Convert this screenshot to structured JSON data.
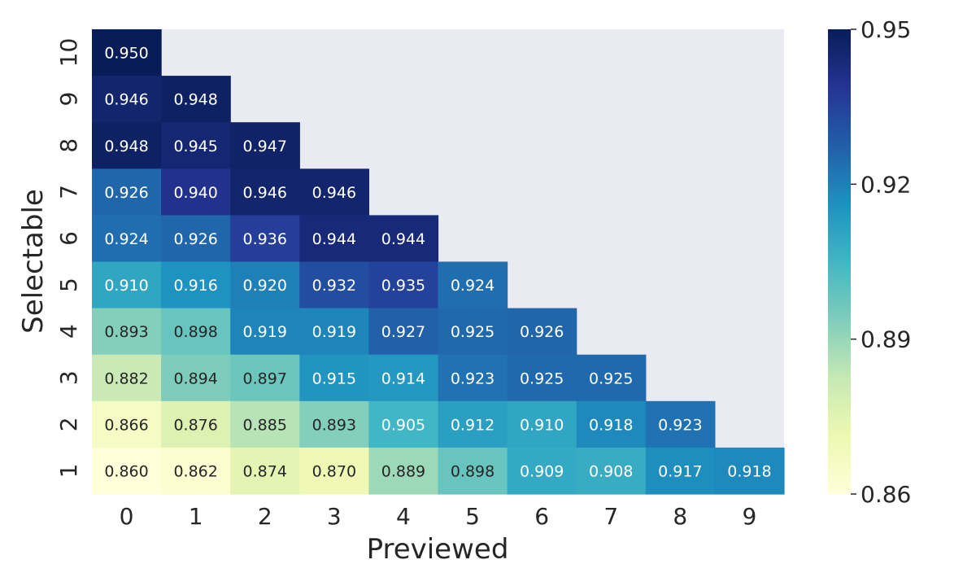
{
  "chart_data": {
    "type": "heatmap",
    "title": "",
    "xlabel": "Previewed",
    "ylabel": "Selectable",
    "x_ticks": [
      "0",
      "1",
      "2",
      "3",
      "4",
      "5",
      "6",
      "7",
      "8",
      "9"
    ],
    "y_ticks": [
      "10",
      "9",
      "8",
      "7",
      "6",
      "5",
      "4",
      "3",
      "2",
      "1"
    ],
    "rows": [
      [
        "0.950"
      ],
      [
        "0.946",
        "0.948"
      ],
      [
        "0.948",
        "0.945",
        "0.947"
      ],
      [
        "0.926",
        "0.940",
        "0.946",
        "0.946"
      ],
      [
        "0.924",
        "0.926",
        "0.936",
        "0.944",
        "0.944"
      ],
      [
        "0.910",
        "0.916",
        "0.920",
        "0.932",
        "0.935",
        "0.924"
      ],
      [
        "0.893",
        "0.898",
        "0.919",
        "0.919",
        "0.927",
        "0.925",
        "0.926"
      ],
      [
        "0.882",
        "0.894",
        "0.897",
        "0.915",
        "0.914",
        "0.923",
        "0.925",
        "0.925"
      ],
      [
        "0.866",
        "0.876",
        "0.885",
        "0.893",
        "0.905",
        "0.912",
        "0.910",
        "0.918",
        "0.923"
      ],
      [
        "0.860",
        "0.862",
        "0.874",
        "0.870",
        "0.889",
        "0.898",
        "0.909",
        "0.908",
        "0.917",
        "0.918"
      ]
    ],
    "vmin": 0.86,
    "vmax": 0.95,
    "colormap": "YlGnBu",
    "masked_color": "#eaeaf2",
    "colorbar": {
      "ticks": [
        "0.95",
        "0.92",
        "0.89",
        "0.86"
      ],
      "tick_values": [
        0.95,
        0.92,
        0.89,
        0.86
      ],
      "placement": "right"
    },
    "grid": false
  }
}
